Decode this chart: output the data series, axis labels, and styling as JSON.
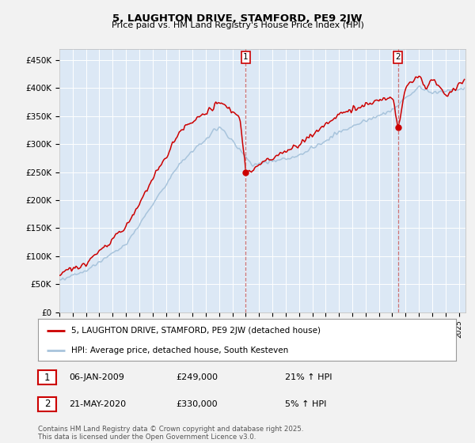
{
  "title": "5, LAUGHTON DRIVE, STAMFORD, PE9 2JW",
  "subtitle": "Price paid vs. HM Land Registry's House Price Index (HPI)",
  "ylim": [
    0,
    470000
  ],
  "yticks": [
    0,
    50000,
    100000,
    150000,
    200000,
    250000,
    300000,
    350000,
    400000,
    450000
  ],
  "ytick_labels": [
    "£0",
    "£50K",
    "£100K",
    "£150K",
    "£200K",
    "£250K",
    "£300K",
    "£350K",
    "£400K",
    "£450K"
  ],
  "fig_bg_color": "#f2f2f2",
  "plot_bg_color": "#dce8f5",
  "red_color": "#cc0000",
  "blue_color": "#a8c4dc",
  "vline_color": "#cc6666",
  "legend_line1": "5, LAUGHTON DRIVE, STAMFORD, PE9 2JW (detached house)",
  "legend_line2": "HPI: Average price, detached house, South Kesteven",
  "annotation1_date": "06-JAN-2009",
  "annotation1_price": "£249,000",
  "annotation1_hpi": "21% ↑ HPI",
  "annotation2_date": "21-MAY-2020",
  "annotation2_price": "£330,000",
  "annotation2_hpi": "5% ↑ HPI",
  "footer": "Contains HM Land Registry data © Crown copyright and database right 2025.\nThis data is licensed under the Open Government Licence v3.0.",
  "marker1_year": 2009.04,
  "marker2_year": 2020.38,
  "marker1_val": 249000,
  "marker2_val": 330000,
  "xlim_start": 1995,
  "xlim_end": 2025.5
}
